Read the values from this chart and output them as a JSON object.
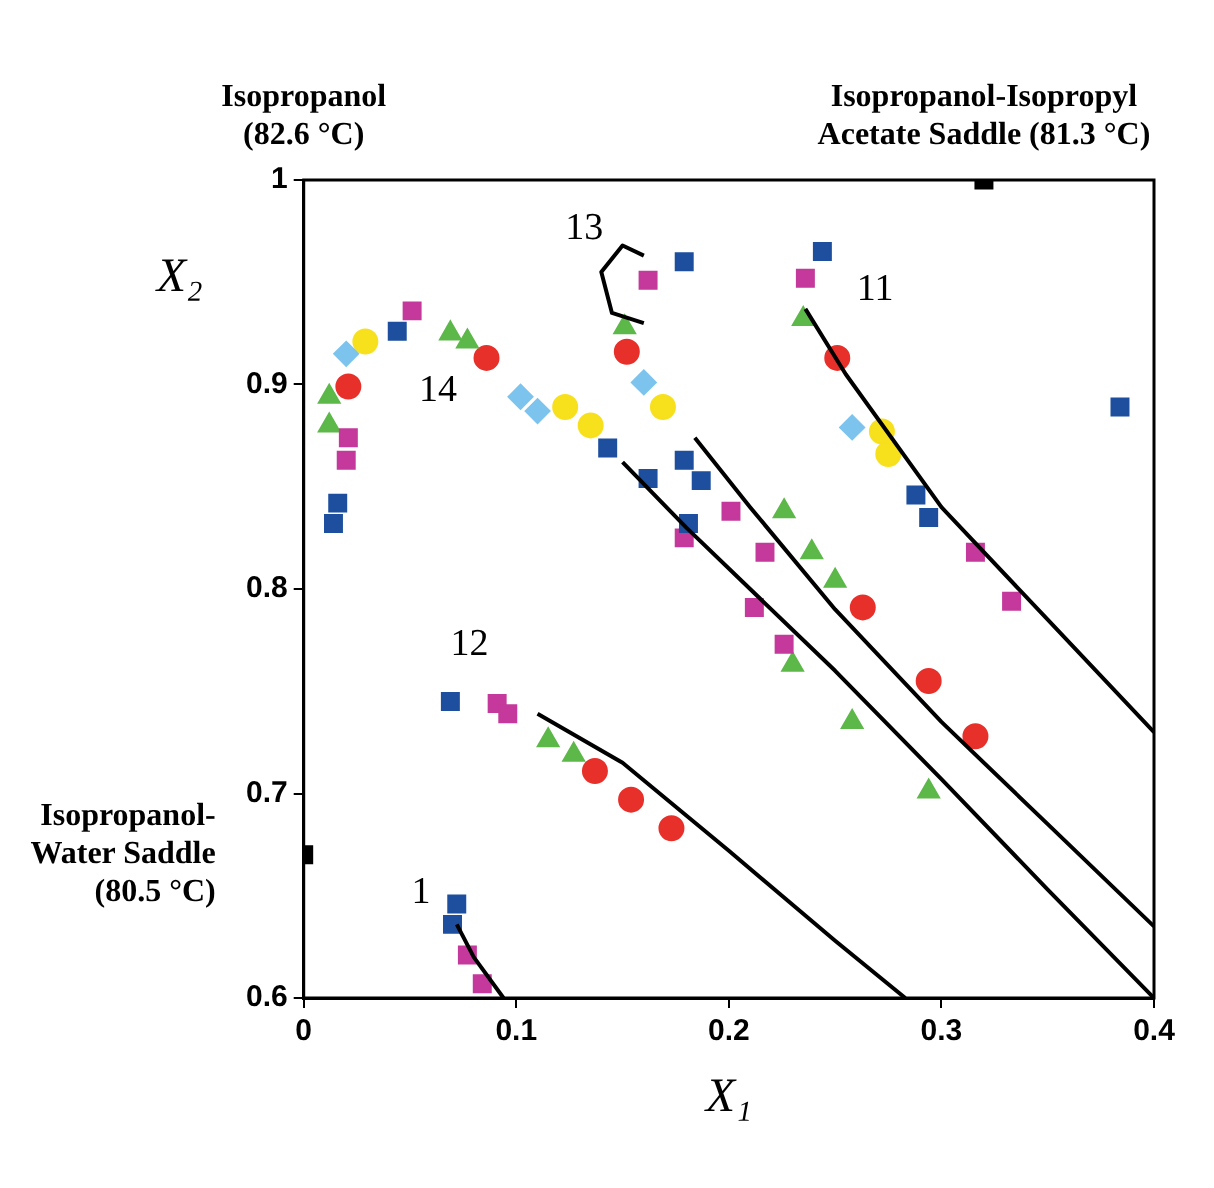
{
  "chart_data": {
    "type": "scatter",
    "xlabel": "X₁",
    "ylabel": "X₂",
    "xlim": [
      0,
      0.4
    ],
    "xticks": [
      0,
      0.1,
      0.2,
      0.3,
      0.4
    ],
    "ylim": [
      0.6,
      1
    ],
    "yticks": [
      0.6,
      0.7,
      0.8,
      0.9,
      1
    ],
    "grid": false,
    "annotations": [
      "Isopropanol (82.6 °C)",
      {
        "text": "Isopropanol-Isopropyl Acetate Saddle (81.3 °C)",
        "x": 0.32,
        "y": 1
      },
      {
        "text": "Isopropanol-Water Saddle (80.5 °C)",
        "x": 0,
        "y": 0.67
      },
      "13",
      "11",
      "14",
      "12",
      "1"
    ],
    "series": [
      {
        "type": "line",
        "color": "#000000",
        "marker": "none",
        "x": [
          0.236,
          0.255,
          0.3,
          0.35,
          0.4
        ],
        "values": [
          0.937,
          0.905,
          0.84,
          0.785,
          0.73
        ]
      },
      {
        "type": "line",
        "color": "#000000",
        "marker": "none",
        "x": [
          0.16,
          0.15,
          0.14,
          0.145,
          0.16
        ],
        "values": [
          0.963,
          0.968,
          0.955,
          0.935,
          0.93
        ]
      },
      {
        "type": "line",
        "color": "#000000",
        "marker": "none",
        "x": [
          0.184,
          0.21,
          0.25,
          0.3,
          0.35,
          0.4
        ],
        "values": [
          0.874,
          0.84,
          0.79,
          0.735,
          0.685,
          0.635
        ]
      },
      {
        "type": "line",
        "color": "#000000",
        "marker": "none",
        "x": [
          0.15,
          0.18,
          0.25,
          0.3,
          0.35,
          0.4
        ],
        "values": [
          0.862,
          0.83,
          0.76,
          0.707,
          0.653,
          0.6
        ]
      },
      {
        "type": "line",
        "color": "#000000",
        "marker": "none",
        "x": [
          0.11,
          0.15,
          0.2,
          0.25,
          0.283
        ],
        "values": [
          0.739,
          0.715,
          0.672,
          0.628,
          0.6
        ]
      },
      {
        "type": "line",
        "color": "#000000",
        "marker": "none",
        "x": [
          0.072,
          0.08,
          0.094
        ],
        "values": [
          0.636,
          0.62,
          0.6
        ]
      },
      {
        "type": "scatter",
        "color": "#1d4f9e",
        "marker": "square",
        "x": [
          0.014,
          0.016,
          0.044,
          0.143,
          0.162,
          0.181,
          0.179,
          0.179,
          0.187,
          0.244,
          0.288,
          0.294,
          0.384,
          0.069,
          0.072,
          0.07
        ],
        "values": [
          0.832,
          0.842,
          0.926,
          0.869,
          0.854,
          0.832,
          0.96,
          0.863,
          0.853,
          0.965,
          0.846,
          0.835,
          0.889,
          0.745,
          0.646,
          0.636
        ]
      },
      {
        "type": "scatter",
        "color": "#c4399b",
        "marker": "square",
        "x": [
          0.02,
          0.021,
          0.051,
          0.162,
          0.201,
          0.217,
          0.179,
          0.212,
          0.226,
          0.236,
          0.316,
          0.333,
          0.091,
          0.096,
          0.077,
          0.084
        ],
        "values": [
          0.863,
          0.874,
          0.936,
          0.951,
          0.838,
          0.818,
          0.825,
          0.791,
          0.773,
          0.952,
          0.818,
          0.794,
          0.744,
          0.739,
          0.621,
          0.607
        ]
      },
      {
        "type": "scatter",
        "color": "#5cb848",
        "marker": "triangle",
        "x": [
          0.012,
          0.012,
          0.069,
          0.077,
          0.151,
          0.226,
          0.239,
          0.25,
          0.23,
          0.258,
          0.294,
          0.235,
          0.115,
          0.127
        ],
        "values": [
          0.88,
          0.894,
          0.925,
          0.921,
          0.928,
          0.838,
          0.818,
          0.804,
          0.763,
          0.735,
          0.701,
          0.932,
          0.726,
          0.719
        ]
      },
      {
        "type": "scatter",
        "color": "#e8302a",
        "marker": "circle",
        "x": [
          0.021,
          0.086,
          0.152,
          0.263,
          0.294,
          0.316,
          0.251,
          0.137,
          0.154,
          0.173
        ],
        "values": [
          0.899,
          0.913,
          0.916,
          0.791,
          0.755,
          0.728,
          0.913,
          0.711,
          0.697,
          0.683
        ]
      },
      {
        "type": "scatter",
        "color": "#7cc4ee",
        "marker": "diamond",
        "x": [
          0.02,
          0.102,
          0.11,
          0.16,
          0.258
        ],
        "values": [
          0.915,
          0.894,
          0.887,
          0.901,
          0.879
        ]
      },
      {
        "type": "scatter",
        "color": "#f7e01c",
        "marker": "circle",
        "x": [
          0.029,
          0.123,
          0.135,
          0.169,
          0.272,
          0.275
        ],
        "values": [
          0.921,
          0.889,
          0.88,
          0.889,
          0.877,
          0.866
        ]
      },
      {
        "type": "scatter",
        "color": "#000000",
        "marker": "square",
        "x": [
          0.32,
          0
        ],
        "values": [
          1,
          0.67
        ]
      }
    ]
  }
}
